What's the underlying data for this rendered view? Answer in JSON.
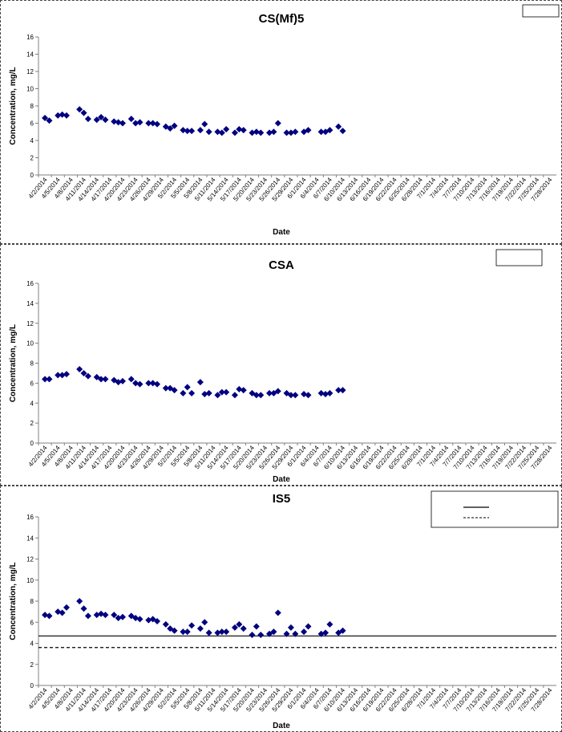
{
  "x_tick_labels": [
    "4/2/2014",
    "4/5/2014",
    "4/8/2014",
    "4/11/2014",
    "4/14/2014",
    "4/17/2014",
    "4/20/2014",
    "4/23/2014",
    "4/26/2014",
    "4/29/2014",
    "5/2/2014",
    "5/5/2014",
    "5/8/2014",
    "5/11/2014",
    "5/14/2014",
    "5/17/2014",
    "5/20/2014",
    "5/23/2014",
    "5/26/2014",
    "5/29/2014",
    "6/1/2014",
    "6/4/2014",
    "6/7/2014",
    "6/10/2014",
    "6/13/2014",
    "6/16/2014",
    "6/19/2014",
    "6/22/2014",
    "6/25/2014",
    "6/28/2014",
    "7/1/2014",
    "7/4/2014",
    "7/7/2014",
    "7/10/2014",
    "7/13/2014",
    "7/16/2014",
    "7/19/2014",
    "7/22/2014",
    "7/25/2014",
    "7/28/2014"
  ],
  "colors": {
    "marker": "#000080",
    "axis": "#808080",
    "text": "#000000"
  },
  "chart_data": [
    {
      "type": "scatter",
      "title": "CS(Mf)5",
      "xlabel": "Date",
      "ylabel": "Concentration, mg/L",
      "ylim": [
        0,
        16
      ],
      "yticks": [
        0,
        2,
        4,
        6,
        8,
        10,
        12,
        14,
        16
      ],
      "legend": "top-right",
      "series": [
        {
          "values": [
            [
              "4/2/2014",
              6.6
            ],
            [
              "4/3/2014",
              6.3
            ],
            [
              "4/5/2014",
              6.9
            ],
            [
              "4/6/2014",
              7.0
            ],
            [
              "4/7/2014",
              6.9
            ],
            [
              "4/10/2014",
              7.6
            ],
            [
              "4/11/2014",
              7.2
            ],
            [
              "4/12/2014",
              6.5
            ],
            [
              "4/14/2014",
              6.4
            ],
            [
              "4/15/2014",
              6.7
            ],
            [
              "4/16/2014",
              6.4
            ],
            [
              "4/18/2014",
              6.2
            ],
            [
              "4/19/2014",
              6.1
            ],
            [
              "4/20/2014",
              6.0
            ],
            [
              "4/22/2014",
              6.5
            ],
            [
              "4/23/2014",
              6.0
            ],
            [
              "4/24/2014",
              6.1
            ],
            [
              "4/26/2014",
              6.0
            ],
            [
              "4/27/2014",
              6.0
            ],
            [
              "4/28/2014",
              5.9
            ],
            [
              "4/30/2014",
              5.6
            ],
            [
              "5/1/2014",
              5.4
            ],
            [
              "5/2/2014",
              5.7
            ],
            [
              "5/4/2014",
              5.2
            ],
            [
              "5/5/2014",
              5.1
            ],
            [
              "5/6/2014",
              5.1
            ],
            [
              "5/8/2014",
              5.2
            ],
            [
              "5/9/2014",
              5.9
            ],
            [
              "5/10/2014",
              5.0
            ],
            [
              "5/12/2014",
              5.0
            ],
            [
              "5/13/2014",
              4.9
            ],
            [
              "5/14/2014",
              5.3
            ],
            [
              "5/16/2014",
              4.9
            ],
            [
              "5/17/2014",
              5.3
            ],
            [
              "5/18/2014",
              5.2
            ],
            [
              "5/20/2014",
              4.9
            ],
            [
              "5/21/2014",
              5.0
            ],
            [
              "5/22/2014",
              4.9
            ],
            [
              "5/24/2014",
              4.9
            ],
            [
              "5/25/2014",
              5.0
            ],
            [
              "5/26/2014",
              6.0
            ],
            [
              "5/28/2014",
              4.9
            ],
            [
              "5/29/2014",
              4.9
            ],
            [
              "5/30/2014",
              5.0
            ],
            [
              "6/1/2014",
              5.0
            ],
            [
              "6/2/2014",
              5.2
            ],
            [
              "6/5/2014",
              5.0
            ],
            [
              "6/6/2014",
              5.0
            ],
            [
              "6/7/2014",
              5.2
            ],
            [
              "6/9/2014",
              5.6
            ],
            [
              "6/10/2014",
              5.1
            ]
          ]
        }
      ]
    },
    {
      "type": "scatter",
      "title": "CSA",
      "xlabel": "Date",
      "ylabel": "Concentration, mg/L",
      "ylim": [
        0,
        16
      ],
      "yticks": [
        0,
        2,
        4,
        6,
        8,
        10,
        12,
        14,
        16
      ],
      "legend": "top-right",
      "series": [
        {
          "values": [
            [
              "4/2/2014",
              6.4
            ],
            [
              "4/3/2014",
              6.4
            ],
            [
              "4/5/2014",
              6.8
            ],
            [
              "4/6/2014",
              6.8
            ],
            [
              "4/7/2014",
              6.9
            ],
            [
              "4/10/2014",
              7.4
            ],
            [
              "4/11/2014",
              7.0
            ],
            [
              "4/12/2014",
              6.7
            ],
            [
              "4/14/2014",
              6.6
            ],
            [
              "4/15/2014",
              6.4
            ],
            [
              "4/16/2014",
              6.4
            ],
            [
              "4/18/2014",
              6.3
            ],
            [
              "4/19/2014",
              6.1
            ],
            [
              "4/20/2014",
              6.2
            ],
            [
              "4/22/2014",
              6.4
            ],
            [
              "4/23/2014",
              6.0
            ],
            [
              "4/24/2014",
              5.9
            ],
            [
              "4/26/2014",
              6.0
            ],
            [
              "4/27/2014",
              6.0
            ],
            [
              "4/28/2014",
              5.9
            ],
            [
              "4/30/2014",
              5.5
            ],
            [
              "5/1/2014",
              5.5
            ],
            [
              "5/2/2014",
              5.3
            ],
            [
              "5/4/2014",
              5.0
            ],
            [
              "5/5/2014",
              5.6
            ],
            [
              "5/6/2014",
              5.0
            ],
            [
              "5/8/2014",
              6.1
            ],
            [
              "5/9/2014",
              4.9
            ],
            [
              "5/10/2014",
              5.0
            ],
            [
              "5/12/2014",
              4.8
            ],
            [
              "5/13/2014",
              5.1
            ],
            [
              "5/14/2014",
              5.1
            ],
            [
              "5/16/2014",
              4.8
            ],
            [
              "5/17/2014",
              5.4
            ],
            [
              "5/18/2014",
              5.3
            ],
            [
              "5/20/2014",
              5.0
            ],
            [
              "5/21/2014",
              4.8
            ],
            [
              "5/22/2014",
              4.8
            ],
            [
              "5/24/2014",
              5.0
            ],
            [
              "5/25/2014",
              5.0
            ],
            [
              "5/26/2014",
              5.2
            ],
            [
              "5/28/2014",
              5.0
            ],
            [
              "5/29/2014",
              4.8
            ],
            [
              "5/30/2014",
              4.8
            ],
            [
              "6/1/2014",
              4.9
            ],
            [
              "6/2/2014",
              4.8
            ],
            [
              "6/5/2014",
              5.0
            ],
            [
              "6/6/2014",
              4.9
            ],
            [
              "6/7/2014",
              5.0
            ],
            [
              "6/9/2014",
              5.3
            ],
            [
              "6/10/2014",
              5.3
            ]
          ]
        }
      ]
    },
    {
      "type": "scatter",
      "title": "IS5",
      "xlabel": "Date",
      "ylabel": "Concentration, mg/L",
      "ylim": [
        0,
        16
      ],
      "yticks": [
        0,
        2,
        4,
        6,
        8,
        10,
        12,
        14,
        16
      ],
      "legend": "top-right",
      "reference_lines": [
        {
          "style": "solid",
          "y": 4.7
        },
        {
          "style": "dashed",
          "y": 3.6
        }
      ],
      "series": [
        {
          "values": [
            [
              "4/2/2014",
              6.7
            ],
            [
              "4/3/2014",
              6.6
            ],
            [
              "4/5/2014",
              7.0
            ],
            [
              "4/6/2014",
              6.9
            ],
            [
              "4/7/2014",
              7.4
            ],
            [
              "4/10/2014",
              8.0
            ],
            [
              "4/11/2014",
              7.3
            ],
            [
              "4/12/2014",
              6.6
            ],
            [
              "4/14/2014",
              6.7
            ],
            [
              "4/15/2014",
              6.8
            ],
            [
              "4/16/2014",
              6.7
            ],
            [
              "4/18/2014",
              6.7
            ],
            [
              "4/19/2014",
              6.4
            ],
            [
              "4/20/2014",
              6.5
            ],
            [
              "4/22/2014",
              6.6
            ],
            [
              "4/23/2014",
              6.4
            ],
            [
              "4/24/2014",
              6.3
            ],
            [
              "4/26/2014",
              6.2
            ],
            [
              "4/27/2014",
              6.3
            ],
            [
              "4/28/2014",
              6.1
            ],
            [
              "4/30/2014",
              5.8
            ],
            [
              "5/1/2014",
              5.4
            ],
            [
              "5/2/2014",
              5.2
            ],
            [
              "5/4/2014",
              5.1
            ],
            [
              "5/5/2014",
              5.1
            ],
            [
              "5/6/2014",
              5.7
            ],
            [
              "5/8/2014",
              5.4
            ],
            [
              "5/9/2014",
              6.0
            ],
            [
              "5/10/2014",
              5.0
            ],
            [
              "5/12/2014",
              5.0
            ],
            [
              "5/13/2014",
              5.1
            ],
            [
              "5/14/2014",
              5.1
            ],
            [
              "5/16/2014",
              5.5
            ],
            [
              "5/17/2014",
              5.8
            ],
            [
              "5/18/2014",
              5.4
            ],
            [
              "5/20/2014",
              4.8
            ],
            [
              "5/21/2014",
              5.6
            ],
            [
              "5/22/2014",
              4.8
            ],
            [
              "5/24/2014",
              4.9
            ],
            [
              "5/25/2014",
              5.1
            ],
            [
              "5/26/2014",
              6.9
            ],
            [
              "5/28/2014",
              4.9
            ],
            [
              "5/29/2014",
              5.5
            ],
            [
              "5/30/2014",
              4.9
            ],
            [
              "6/1/2014",
              5.1
            ],
            [
              "6/2/2014",
              5.6
            ],
            [
              "6/5/2014",
              4.9
            ],
            [
              "6/6/2014",
              5.0
            ],
            [
              "6/7/2014",
              5.8
            ],
            [
              "6/9/2014",
              5.0
            ],
            [
              "6/10/2014",
              5.2
            ]
          ]
        }
      ]
    }
  ]
}
